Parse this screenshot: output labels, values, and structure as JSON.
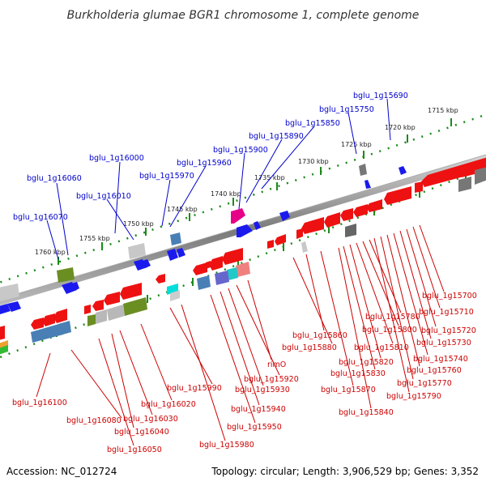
{
  "title": "Burkholderia glumae BGR1 chromosome 1, complete genome",
  "accession": "Accession: NC_012724",
  "summary": "Topology: circular; Length: 3,906,529 bp; Genes: 3,352",
  "colors": {
    "label_upper": "#0000cc",
    "label_lower": "#cc0000",
    "ticks": "#1a8a1a",
    "backbone": "#888888"
  },
  "kbp_ticks": [
    "1715 kbp",
    "1720 kbp",
    "1725 kbp",
    "1730 kbp",
    "1735 kbp",
    "1740 kbp",
    "1745 kbp",
    "1750 kbp",
    "1755 kbp",
    "1760 kbp"
  ],
  "upper_labels": [
    "bglu_1g15690",
    "bglu_1g15750",
    "bglu_1g15850",
    "bglu_1g15890",
    "bglu_1g15900",
    "bglu_1g15960",
    "bglu_1g15970",
    "bglu_1g16000",
    "bglu_1g16010",
    "bglu_1g16060",
    "bglu_1g16070"
  ],
  "lower_labels": [
    "bglu_1g15700",
    "bglu_1g15710",
    "bglu_1g15720",
    "bglu_1g15730",
    "bglu_1g15740",
    "bglu_1g15760",
    "bglu_1g15770",
    "bglu_1g15780",
    "bglu_1g15790",
    "bglu_1g15800",
    "bglu_1g15810",
    "bglu_1g15820",
    "bglu_1g15830",
    "bglu_1g15840",
    "bglu_1g15860",
    "bglu_1g15870",
    "bglu_1g15880",
    "rimO",
    "bglu_1g15920",
    "bglu_1g15930",
    "bglu_1g15940",
    "bglu_1g15950",
    "bglu_1g15980",
    "bglu_1g15990",
    "bglu_1g16020",
    "bglu_1g16030",
    "bglu_1g16040",
    "bglu_1g16050",
    "bglu_1g16080",
    "bglu_1g16100"
  ]
}
